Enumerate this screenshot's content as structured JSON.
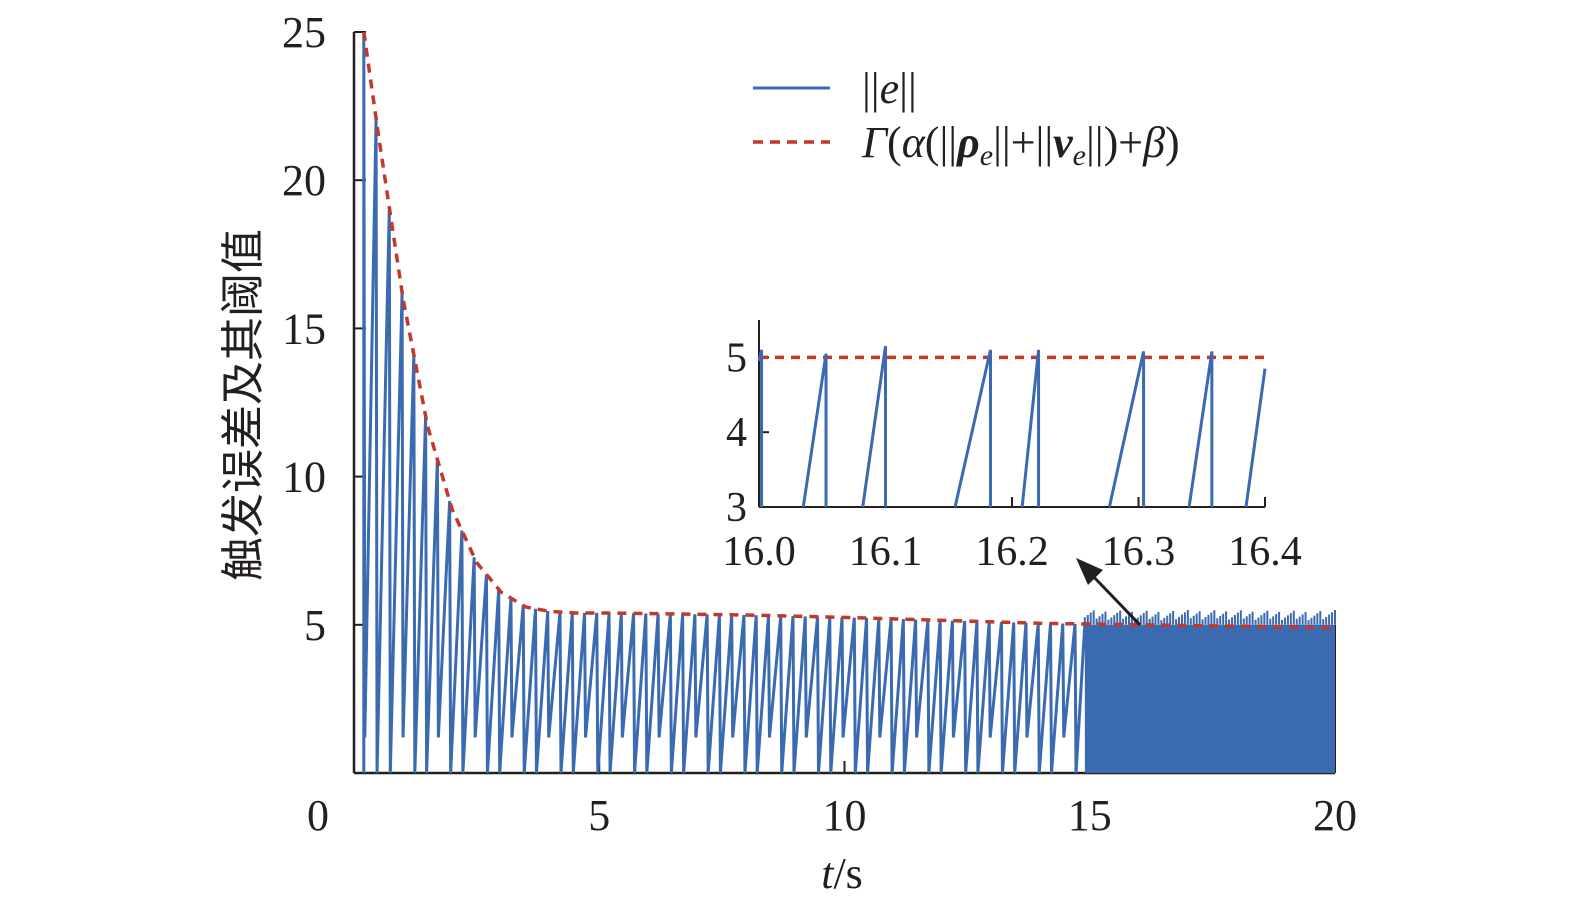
{
  "chart_data": {
    "type": "line",
    "xlabel": "t/s",
    "ylabel": "触发误差及其阈值",
    "xlim": [
      0,
      20
    ],
    "ylim": [
      0,
      25
    ],
    "xticks": [
      "0",
      "5",
      "10",
      "15",
      "20"
    ],
    "yticks": [
      "5",
      "10",
      "15",
      "20",
      "25"
    ],
    "legend_position": "top-right",
    "grid": false,
    "series": [
      {
        "name": "||e||",
        "style": "solid",
        "color": "#3a6ab0",
        "description_values": "sawtooth: rises from 0 to the threshold, then resets to 0",
        "event_times": [
          0.2,
          0.45,
          0.72,
          0.98,
          1.22,
          1.46,
          1.7,
          1.95,
          2.2,
          2.45,
          2.7,
          2.95,
          3.2,
          3.45,
          3.7,
          3.95,
          4.2,
          4.45,
          4.7,
          4.95,
          5.2,
          5.45,
          5.7,
          5.95,
          6.2,
          6.45,
          6.7,
          6.95,
          7.2,
          7.45,
          7.7,
          7.95,
          8.2,
          8.45,
          8.7,
          8.95,
          9.2,
          9.45,
          9.7,
          9.95,
          10.2,
          10.45,
          10.7,
          10.95,
          11.2,
          11.45,
          11.7,
          11.95,
          12.2,
          12.45,
          12.7,
          12.95,
          13.2,
          13.45,
          13.7,
          13.95,
          14.2,
          14.45,
          14.7,
          14.9
        ]
      },
      {
        "name": "Γ(α(||ρe||+||ve||)+β)",
        "style": "dashed",
        "color": "#c0392b",
        "x": [
          0.2,
          0.5,
          1.0,
          1.5,
          2.0,
          2.5,
          3.0,
          3.5,
          4.0,
          4.5,
          5.0,
          6.0,
          8.0,
          10.0,
          12.0,
          14.0,
          16.0,
          18.0,
          20.0
        ],
        "y": [
          25.0,
          21.5,
          16.0,
          11.7,
          8.9,
          7.1,
          6.1,
          5.6,
          5.45,
          5.4,
          5.4,
          5.38,
          5.33,
          5.25,
          5.15,
          5.05,
          5.0,
          4.95,
          4.9
        ]
      }
    ],
    "dense_region": {
      "x_start": 14.9,
      "x_end": 20.0,
      "y_min": 0.0,
      "y_max": 5.0
    },
    "inset": {
      "xlim": [
        16.0,
        16.4
      ],
      "ylim": [
        3,
        5.5
      ],
      "xticks": [
        "16.0",
        "16.1",
        "16.2",
        "16.3",
        "16.4"
      ],
      "yticks": [
        "3",
        "4",
        "5"
      ],
      "threshold": 5.0,
      "resets": [
        16.002,
        16.053,
        16.1,
        16.183,
        16.221,
        16.304,
        16.358
      ],
      "ramp_starts_at_3": [
        16.035,
        16.082,
        16.155,
        16.208,
        16.277,
        16.34,
        16.385
      ],
      "end_value": 4.85,
      "peaks": [
        5.1,
        5.05,
        5.15,
        5.1,
        5.1,
        5.08,
        5.08
      ]
    },
    "arrow": {
      "from": [
        16.0,
        5.2
      ],
      "to": "inset"
    }
  }
}
